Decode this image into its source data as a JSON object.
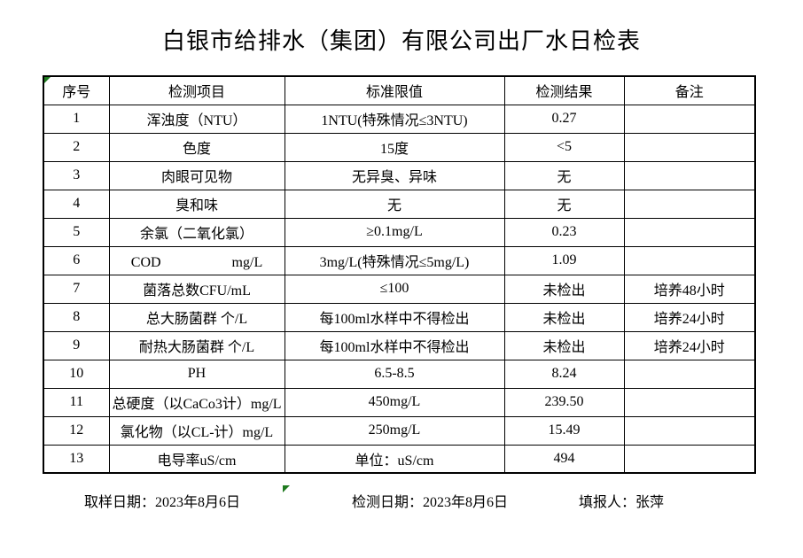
{
  "title": "白银市给排水（集团）有限公司出厂水日检表",
  "indicator_color": "#1f7a1f",
  "table": {
    "headers": [
      "序号",
      "检测项目",
      "标准限值",
      "检测结果",
      "备注"
    ],
    "rows": [
      {
        "no": "1",
        "item": "浑浊度（NTU）",
        "standard": "1NTU(特殊情况≤3NTU)",
        "result": "0.27",
        "remark": ""
      },
      {
        "no": "2",
        "item": "色度",
        "standard": "15度",
        "result": "<5",
        "remark": ""
      },
      {
        "no": "3",
        "item": "肉眼可见物",
        "standard": "无异臭、异味",
        "result": "无",
        "remark": ""
      },
      {
        "no": "4",
        "item": "臭和味",
        "standard": "无",
        "result": "无",
        "remark": ""
      },
      {
        "no": "5",
        "item": "余氯（二氧化氯）",
        "standard": "≥0.1mg/L",
        "result": "0.23",
        "remark": ""
      },
      {
        "no": "6",
        "item": "COD　　　　　mg/L",
        "standard": "3mg/L(特殊情况≤5mg/L)",
        "result": "1.09",
        "remark": ""
      },
      {
        "no": "7",
        "item": "菌落总数CFU/mL",
        "standard": "≤100",
        "result": "未检出",
        "remark": "培养48小时"
      },
      {
        "no": "8",
        "item": "总大肠菌群 个/L",
        "standard": "每100ml水样中不得检出",
        "result": "未检出",
        "remark": "培养24小时"
      },
      {
        "no": "9",
        "item": "耐热大肠菌群 个/L",
        "standard": "每100ml水样中不得检出",
        "result": "未检出",
        "remark": "培养24小时"
      },
      {
        "no": "10",
        "item": "PH",
        "standard": "6.5-8.5",
        "result": "8.24",
        "remark": ""
      },
      {
        "no": "11",
        "item": "总硬度（以CaCo3计）mg/L",
        "standard": "450mg/L",
        "result": "239.50",
        "remark": ""
      },
      {
        "no": "12",
        "item": "氯化物（以CL-计）mg/L",
        "standard": "250mg/L",
        "result": "15.49",
        "remark": ""
      },
      {
        "no": "13",
        "item": "电导率uS/cm",
        "standard": "单位：uS/cm",
        "result": "494",
        "remark": ""
      }
    ]
  },
  "footer": {
    "sampling_date": "取样日期：2023年8月6日",
    "test_date": "检测日期：2023年8月6日",
    "reporter": "填报人：张萍"
  }
}
